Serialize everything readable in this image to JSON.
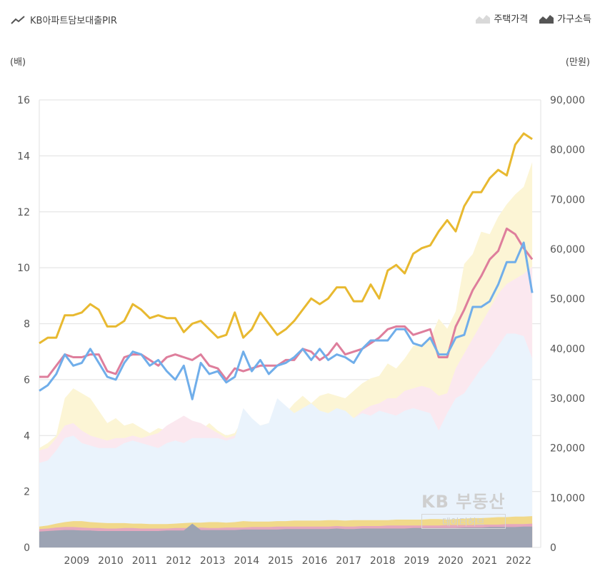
{
  "legend": {
    "left_label": "KB아파트담보대출PIR",
    "price_label": "주택가격",
    "income_label": "가구소득"
  },
  "units": {
    "left": "(배)",
    "right": "(만원)"
  },
  "watermark": {
    "line1": "KB 부동산",
    "line2": "데이터허브"
  },
  "colors": {
    "yellow_line": "#e8b930",
    "pink_line": "#de7e9c",
    "blue_line": "#70aeea",
    "yellow_area": "#fcf5d5",
    "pink_area": "#fbe8ef",
    "blue_area": "#eaf3fc",
    "income_yellow": "#f1d98a",
    "income_pink": "#e5a8be",
    "income_gray": "#9ca3b3"
  },
  "chart_data": {
    "type": "line",
    "title": "KB아파트담보대출PIR",
    "left_axis": {
      "label": "(배)",
      "ylim": [
        0,
        16
      ],
      "ticks": [
        "0",
        "2",
        "4",
        "6",
        "8",
        "10",
        "12",
        "14",
        "16"
      ]
    },
    "right_axis": {
      "label": "(만원)",
      "ylim": [
        0,
        90000
      ],
      "ticks": [
        "0",
        "10,000",
        "20,000",
        "30,000",
        "40,000",
        "50,000",
        "60,000",
        "70,000",
        "80,000",
        "90,000"
      ]
    },
    "x_ticks": [
      "2009",
      "2010",
      "2011",
      "2012",
      "2013",
      "2014",
      "2015",
      "2016",
      "2017",
      "2018",
      "2019",
      "2020",
      "2021",
      "2022"
    ],
    "x_start": 2008.0,
    "x_step": 0.25,
    "series": [
      {
        "name": "KB아파트담보대출PIR (yellow)",
        "axis": "left",
        "values": [
          7.3,
          7.5,
          7.5,
          8.3,
          8.3,
          8.4,
          8.7,
          8.5,
          7.9,
          7.9,
          8.1,
          8.7,
          8.5,
          8.2,
          8.3,
          8.2,
          8.2,
          7.7,
          8.0,
          8.1,
          7.8,
          7.5,
          7.6,
          8.4,
          7.5,
          7.8,
          8.4,
          8.0,
          7.6,
          7.8,
          8.1,
          8.5,
          8.9,
          8.7,
          8.9,
          9.3,
          9.3,
          8.8,
          8.8,
          9.4,
          8.9,
          9.9,
          10.1,
          9.8,
          10.5,
          10.7,
          10.8,
          11.3,
          11.7,
          11.3,
          12.2,
          12.7,
          12.7,
          13.2,
          13.5,
          13.3,
          14.4,
          14.8,
          14.6
        ]
      },
      {
        "name": "KB아파트담보대출PIR (pink)",
        "axis": "left",
        "values": [
          6.1,
          6.1,
          6.5,
          6.9,
          6.8,
          6.8,
          6.9,
          6.9,
          6.3,
          6.2,
          6.8,
          6.9,
          6.9,
          6.7,
          6.5,
          6.8,
          6.9,
          6.8,
          6.7,
          6.9,
          6.5,
          6.4,
          6.0,
          6.4,
          6.3,
          6.4,
          6.5,
          6.5,
          6.5,
          6.7,
          6.7,
          7.1,
          7.0,
          6.7,
          6.9,
          7.3,
          6.9,
          7.0,
          7.1,
          7.3,
          7.5,
          7.8,
          7.9,
          7.9,
          7.6,
          7.7,
          7.8,
          6.8,
          6.8,
          7.9,
          8.5,
          9.2,
          9.7,
          10.3,
          10.6,
          11.4,
          11.2,
          10.7,
          10.3
        ]
      },
      {
        "name": "KB아파트담보대출PIR (blue)",
        "axis": "left",
        "values": [
          5.6,
          5.8,
          6.2,
          6.9,
          6.5,
          6.6,
          7.1,
          6.6,
          6.1,
          6.0,
          6.6,
          7.0,
          6.9,
          6.5,
          6.7,
          6.3,
          6.0,
          6.5,
          5.3,
          6.6,
          6.2,
          6.3,
          5.9,
          6.1,
          7.0,
          6.3,
          6.7,
          6.2,
          6.5,
          6.6,
          6.8,
          7.1,
          6.7,
          7.1,
          6.7,
          6.9,
          6.8,
          6.6,
          7.1,
          7.4,
          7.4,
          7.4,
          7.8,
          7.8,
          7.3,
          7.2,
          7.5,
          6.9,
          6.9,
          7.5,
          7.6,
          8.6,
          8.6,
          8.8,
          9.4,
          10.2,
          10.2,
          10.9,
          9.1
        ]
      },
      {
        "name": "주택가격 (yellow)",
        "axis": "right",
        "values": [
          20000,
          21000,
          22500,
          30000,
          32000,
          31000,
          30000,
          27500,
          25000,
          26000,
          24500,
          25000,
          24000,
          23000,
          24000,
          23500,
          25500,
          26000,
          24000,
          23500,
          25000,
          23500,
          22500,
          23000,
          26000,
          25000,
          24500,
          25000,
          28000,
          27000,
          29000,
          30500,
          29000,
          30500,
          31000,
          30500,
          30000,
          31500,
          33000,
          34000,
          34500,
          37000,
          36000,
          38000,
          40500,
          41000,
          42000,
          46000,
          44000,
          47500,
          57000,
          59000,
          63500,
          63000,
          66500,
          69000,
          71000,
          72500,
          77500
        ]
      },
      {
        "name": "주택가격 (pink)",
        "axis": "right",
        "values": [
          19500,
          20000,
          22000,
          24500,
          25000,
          23500,
          22500,
          22000,
          21500,
          22000,
          22000,
          22500,
          22000,
          22500,
          23000,
          24500,
          25500,
          26500,
          25500,
          25000,
          24000,
          23000,
          22000,
          22500,
          24500,
          23500,
          22500,
          23000,
          25500,
          24500,
          24000,
          25000,
          26000,
          25500,
          26000,
          27000,
          26500,
          26000,
          27500,
          28500,
          29000,
          30000,
          30000,
          31500,
          32000,
          32500,
          32000,
          30500,
          31000,
          36000,
          39000,
          42000,
          45000,
          48000,
          51000,
          53000,
          54000,
          55000,
          56500
        ]
      },
      {
        "name": "주택가격 (blue)",
        "axis": "right",
        "values": [
          17000,
          17500,
          19500,
          22000,
          22500,
          21000,
          20500,
          20000,
          20000,
          20000,
          21000,
          21500,
          21000,
          20500,
          20000,
          21000,
          21500,
          21000,
          22000,
          22000,
          22000,
          22000,
          21500,
          22000,
          28000,
          26000,
          24500,
          25000,
          30000,
          28500,
          27000,
          28000,
          29000,
          27500,
          27000,
          28000,
          27500,
          26000,
          27000,
          26500,
          27500,
          27000,
          26500,
          27500,
          28000,
          27500,
          27000,
          23500,
          27000,
          30000,
          31000,
          33500,
          36000,
          38000,
          40500,
          43000,
          43000,
          42500,
          38000
        ]
      },
      {
        "name": "가구소득 (yellow)",
        "axis": "right",
        "values": [
          4200,
          4400,
          4800,
          5100,
          5300,
          5300,
          5100,
          5000,
          4900,
          4900,
          4900,
          4800,
          4800,
          4700,
          4700,
          4700,
          4800,
          4900,
          5000,
          5000,
          5100,
          5100,
          5000,
          5100,
          5300,
          5200,
          5200,
          5200,
          5300,
          5300,
          5400,
          5400,
          5400,
          5400,
          5500,
          5500,
          5400,
          5500,
          5500,
          5500,
          5500,
          5500,
          5600,
          5600,
          5600,
          5600,
          5700,
          5700,
          5600,
          5700,
          5800,
          5900,
          5900,
          6000,
          6100,
          6100,
          6200,
          6200,
          6300
        ]
      },
      {
        "name": "가구소득 (pink)",
        "axis": "right",
        "values": [
          3700,
          3800,
          4000,
          4100,
          4100,
          4000,
          3900,
          3900,
          3800,
          3800,
          3900,
          3900,
          3800,
          3800,
          3800,
          3800,
          3900,
          3900,
          3900,
          4000,
          3900,
          3900,
          4000,
          4000,
          4000,
          4100,
          4100,
          4100,
          4200,
          4200,
          4200,
          4200,
          4200,
          4200,
          4200,
          4300,
          4200,
          4200,
          4300,
          4300,
          4300,
          4400,
          4400,
          4400,
          4400,
          4400,
          4400,
          4400,
          4500,
          4500,
          4500,
          4500,
          4600,
          4600,
          4600,
          4700,
          4700,
          4700,
          4800
        ]
      },
      {
        "name": "가구소득 (gray)",
        "axis": "right",
        "values": [
          3200,
          3300,
          3400,
          3500,
          3500,
          3400,
          3400,
          3300,
          3300,
          3300,
          3300,
          3300,
          3300,
          3300,
          3300,
          3400,
          3400,
          3400,
          4800,
          3500,
          3500,
          3500,
          3500,
          3500,
          3600,
          3600,
          3600,
          3600,
          3600,
          3700,
          3700,
          3700,
          3700,
          3700,
          3700,
          3800,
          3700,
          3700,
          3800,
          3800,
          3800,
          3800,
          3800,
          3800,
          3900,
          3900,
          3900,
          3900,
          3900,
          3900,
          4000,
          4000,
          4000,
          4100,
          4100,
          4100,
          4100,
          4200,
          4200
        ]
      }
    ]
  }
}
